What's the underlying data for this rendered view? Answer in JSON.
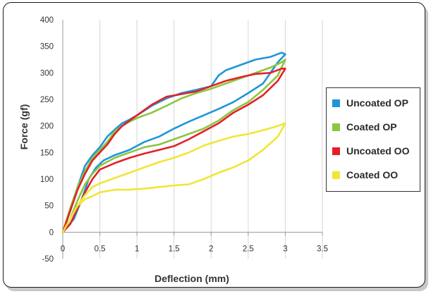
{
  "chart_data": {
    "type": "line",
    "title": "",
    "xlabel": "Deflection (mm)",
    "ylabel": "Force (gf)",
    "xlim": [
      0,
      3.5
    ],
    "ylim": [
      -50,
      400
    ],
    "x_ticks": [
      "0",
      "0.5",
      "1",
      "1.5",
      "2",
      "2.5",
      "3",
      "3.5"
    ],
    "y_ticks": [
      "-50",
      "0",
      "50",
      "100",
      "150",
      "200",
      "250",
      "300",
      "350",
      "400"
    ],
    "grid": "vertical",
    "legend_position": "right",
    "series": [
      {
        "name": "Uncoated OP",
        "color": "#1f96d8",
        "x": [
          0,
          0.1,
          0.2,
          0.3,
          0.4,
          0.5,
          0.6,
          0.7,
          0.8,
          0.9,
          1.0,
          1.2,
          1.4,
          1.6,
          1.8,
          2.0,
          2.1,
          2.2,
          2.4,
          2.6,
          2.8,
          2.95,
          3.0,
          2.9,
          2.7,
          2.5,
          2.3,
          2.1,
          1.9,
          1.7,
          1.5,
          1.3,
          1.1,
          0.9,
          0.7,
          0.55,
          0.45,
          0.35,
          0.25,
          0.15,
          0.05,
          0
        ],
        "y": [
          0,
          40,
          85,
          125,
          145,
          160,
          180,
          193,
          205,
          212,
          220,
          238,
          252,
          262,
          268,
          275,
          295,
          305,
          315,
          325,
          330,
          338,
          335,
          320,
          280,
          262,
          245,
          232,
          220,
          208,
          195,
          180,
          170,
          155,
          145,
          135,
          122,
          100,
          60,
          25,
          8,
          0
        ]
      },
      {
        "name": "Coated OP",
        "color": "#8cc63e",
        "x": [
          0,
          0.1,
          0.2,
          0.3,
          0.4,
          0.5,
          0.6,
          0.7,
          0.8,
          0.9,
          1.0,
          1.2,
          1.4,
          1.6,
          1.8,
          2.0,
          2.2,
          2.4,
          2.6,
          2.8,
          2.95,
          3.0,
          2.9,
          2.7,
          2.5,
          2.3,
          2.1,
          1.9,
          1.7,
          1.5,
          1.3,
          1.1,
          0.9,
          0.7,
          0.5,
          0.4,
          0.3,
          0.2,
          0.1,
          0
        ],
        "y": [
          0,
          45,
          85,
          115,
          140,
          155,
          170,
          190,
          200,
          208,
          215,
          225,
          238,
          252,
          262,
          270,
          280,
          290,
          300,
          310,
          320,
          325,
          295,
          268,
          245,
          230,
          210,
          195,
          185,
          175,
          165,
          160,
          150,
          140,
          125,
          110,
          90,
          60,
          25,
          0
        ]
      },
      {
        "name": "Uncoated OO",
        "color": "#e3202a",
        "x": [
          0,
          0.1,
          0.2,
          0.3,
          0.4,
          0.5,
          0.6,
          0.7,
          0.8,
          0.9,
          1.0,
          1.2,
          1.4,
          1.6,
          1.8,
          2.0,
          2.2,
          2.4,
          2.6,
          2.8,
          2.95,
          3.0,
          2.9,
          2.7,
          2.5,
          2.3,
          2.1,
          1.9,
          1.7,
          1.5,
          1.3,
          1.1,
          0.9,
          0.7,
          0.5,
          0.4,
          0.3,
          0.2,
          0.1,
          0
        ],
        "y": [
          0,
          40,
          80,
          110,
          135,
          150,
          165,
          185,
          200,
          210,
          220,
          240,
          255,
          260,
          265,
          275,
          285,
          292,
          298,
          300,
          308,
          308,
          285,
          258,
          240,
          225,
          205,
          190,
          175,
          162,
          155,
          148,
          140,
          130,
          118,
          100,
          75,
          45,
          15,
          0
        ]
      },
      {
        "name": "Coated OO",
        "color": "#f0e636",
        "x": [
          0,
          0.1,
          0.2,
          0.3,
          0.4,
          0.5,
          0.7,
          0.9,
          1.1,
          1.3,
          1.5,
          1.7,
          1.9,
          2.1,
          2.3,
          2.5,
          2.7,
          2.9,
          3.0,
          2.9,
          2.7,
          2.5,
          2.3,
          2.1,
          1.9,
          1.7,
          1.5,
          1.3,
          1.1,
          0.9,
          0.7,
          0.5,
          0.4,
          0.3,
          0.2,
          0.1,
          0
        ],
        "y": [
          0,
          25,
          50,
          70,
          85,
          92,
          102,
          112,
          122,
          132,
          140,
          150,
          163,
          172,
          180,
          185,
          192,
          200,
          205,
          180,
          155,
          135,
          122,
          112,
          100,
          90,
          88,
          85,
          82,
          80,
          80,
          75,
          68,
          62,
          50,
          25,
          0
        ]
      }
    ]
  }
}
